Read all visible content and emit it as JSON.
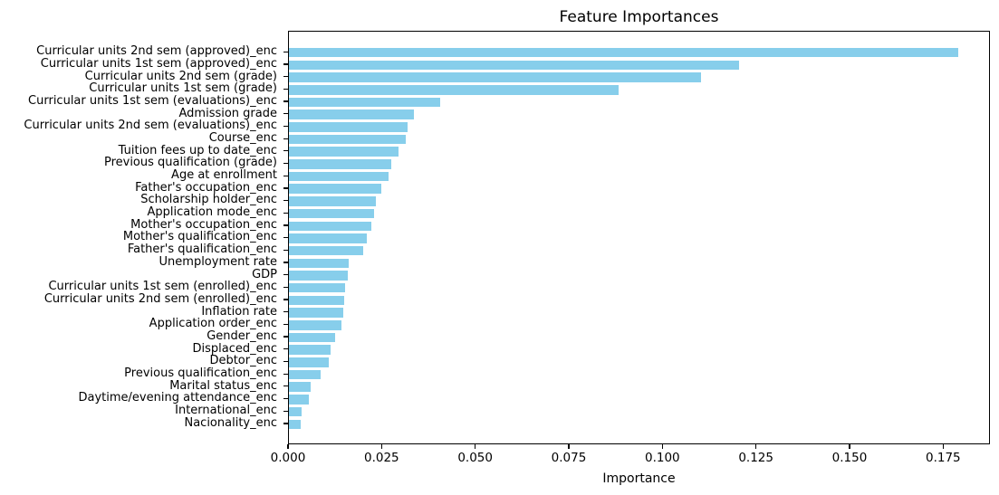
{
  "chart_data": {
    "type": "bar",
    "orientation": "horizontal",
    "title": "Feature Importances",
    "xlabel": "Importance",
    "ylabel": "",
    "bar_color": "#87CEEB",
    "grid": false,
    "legend": null,
    "xlim": [
      0,
      0.1875
    ],
    "x_tick_values": [
      0,
      0.025,
      0.05,
      0.075,
      0.1,
      0.125,
      0.15,
      0.175
    ],
    "x_tick_labels": [
      "0.000",
      "0.025",
      "0.050",
      "0.075",
      "0.100",
      "0.125",
      "0.150",
      "0.175"
    ],
    "categories": [
      "Curricular units 2nd sem (approved)_enc",
      "Curricular units 1st sem (approved)_enc",
      "Curricular units 2nd sem (grade)",
      "Curricular units 1st sem (grade)",
      "Curricular units 1st sem (evaluations)_enc",
      "Admission grade",
      "Curricular units 2nd sem (evaluations)_enc",
      "Course_enc",
      "Tuition fees up to date_enc",
      "Previous qualification (grade)",
      "Age at enrollment",
      "Father's occupation_enc",
      "Scholarship holder_enc",
      "Application mode_enc",
      "Mother's occupation_enc",
      "Mother's qualification_enc",
      "Father's qualification_enc",
      "Unemployment rate",
      "GDP",
      "Curricular units 1st sem (enrolled)_enc",
      "Curricular units 2nd sem (enrolled)_enc",
      "Inflation rate",
      "Application order_enc",
      "Gender_enc",
      "Displaced_enc",
      "Debtor_enc",
      "Previous qualification_enc",
      "Marital status_enc",
      "Daytime/evening attendance_enc",
      "International_enc",
      "Nacionality_enc"
    ],
    "values": [
      0.1787,
      0.1202,
      0.11,
      0.088,
      0.0405,
      0.0333,
      0.0316,
      0.0311,
      0.0292,
      0.0273,
      0.0265,
      0.0246,
      0.0233,
      0.0227,
      0.0219,
      0.0208,
      0.0198,
      0.016,
      0.0158,
      0.0149,
      0.0148,
      0.0144,
      0.014,
      0.0123,
      0.0111,
      0.0106,
      0.0084,
      0.0057,
      0.0053,
      0.0033,
      0.0032
    ]
  }
}
